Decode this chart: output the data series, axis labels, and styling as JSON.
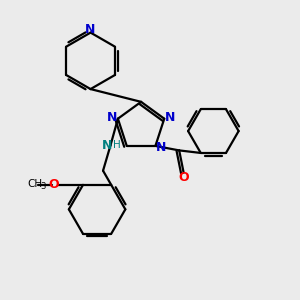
{
  "bg_color": "#ebebeb",
  "bond_color": "#000000",
  "N_color": "#0000cc",
  "O_color": "#ff0000",
  "NH_color": "#008080",
  "lw": 1.6,
  "fs": 9.0,
  "xlim": [
    0,
    10
  ],
  "ylim": [
    0,
    10
  ]
}
